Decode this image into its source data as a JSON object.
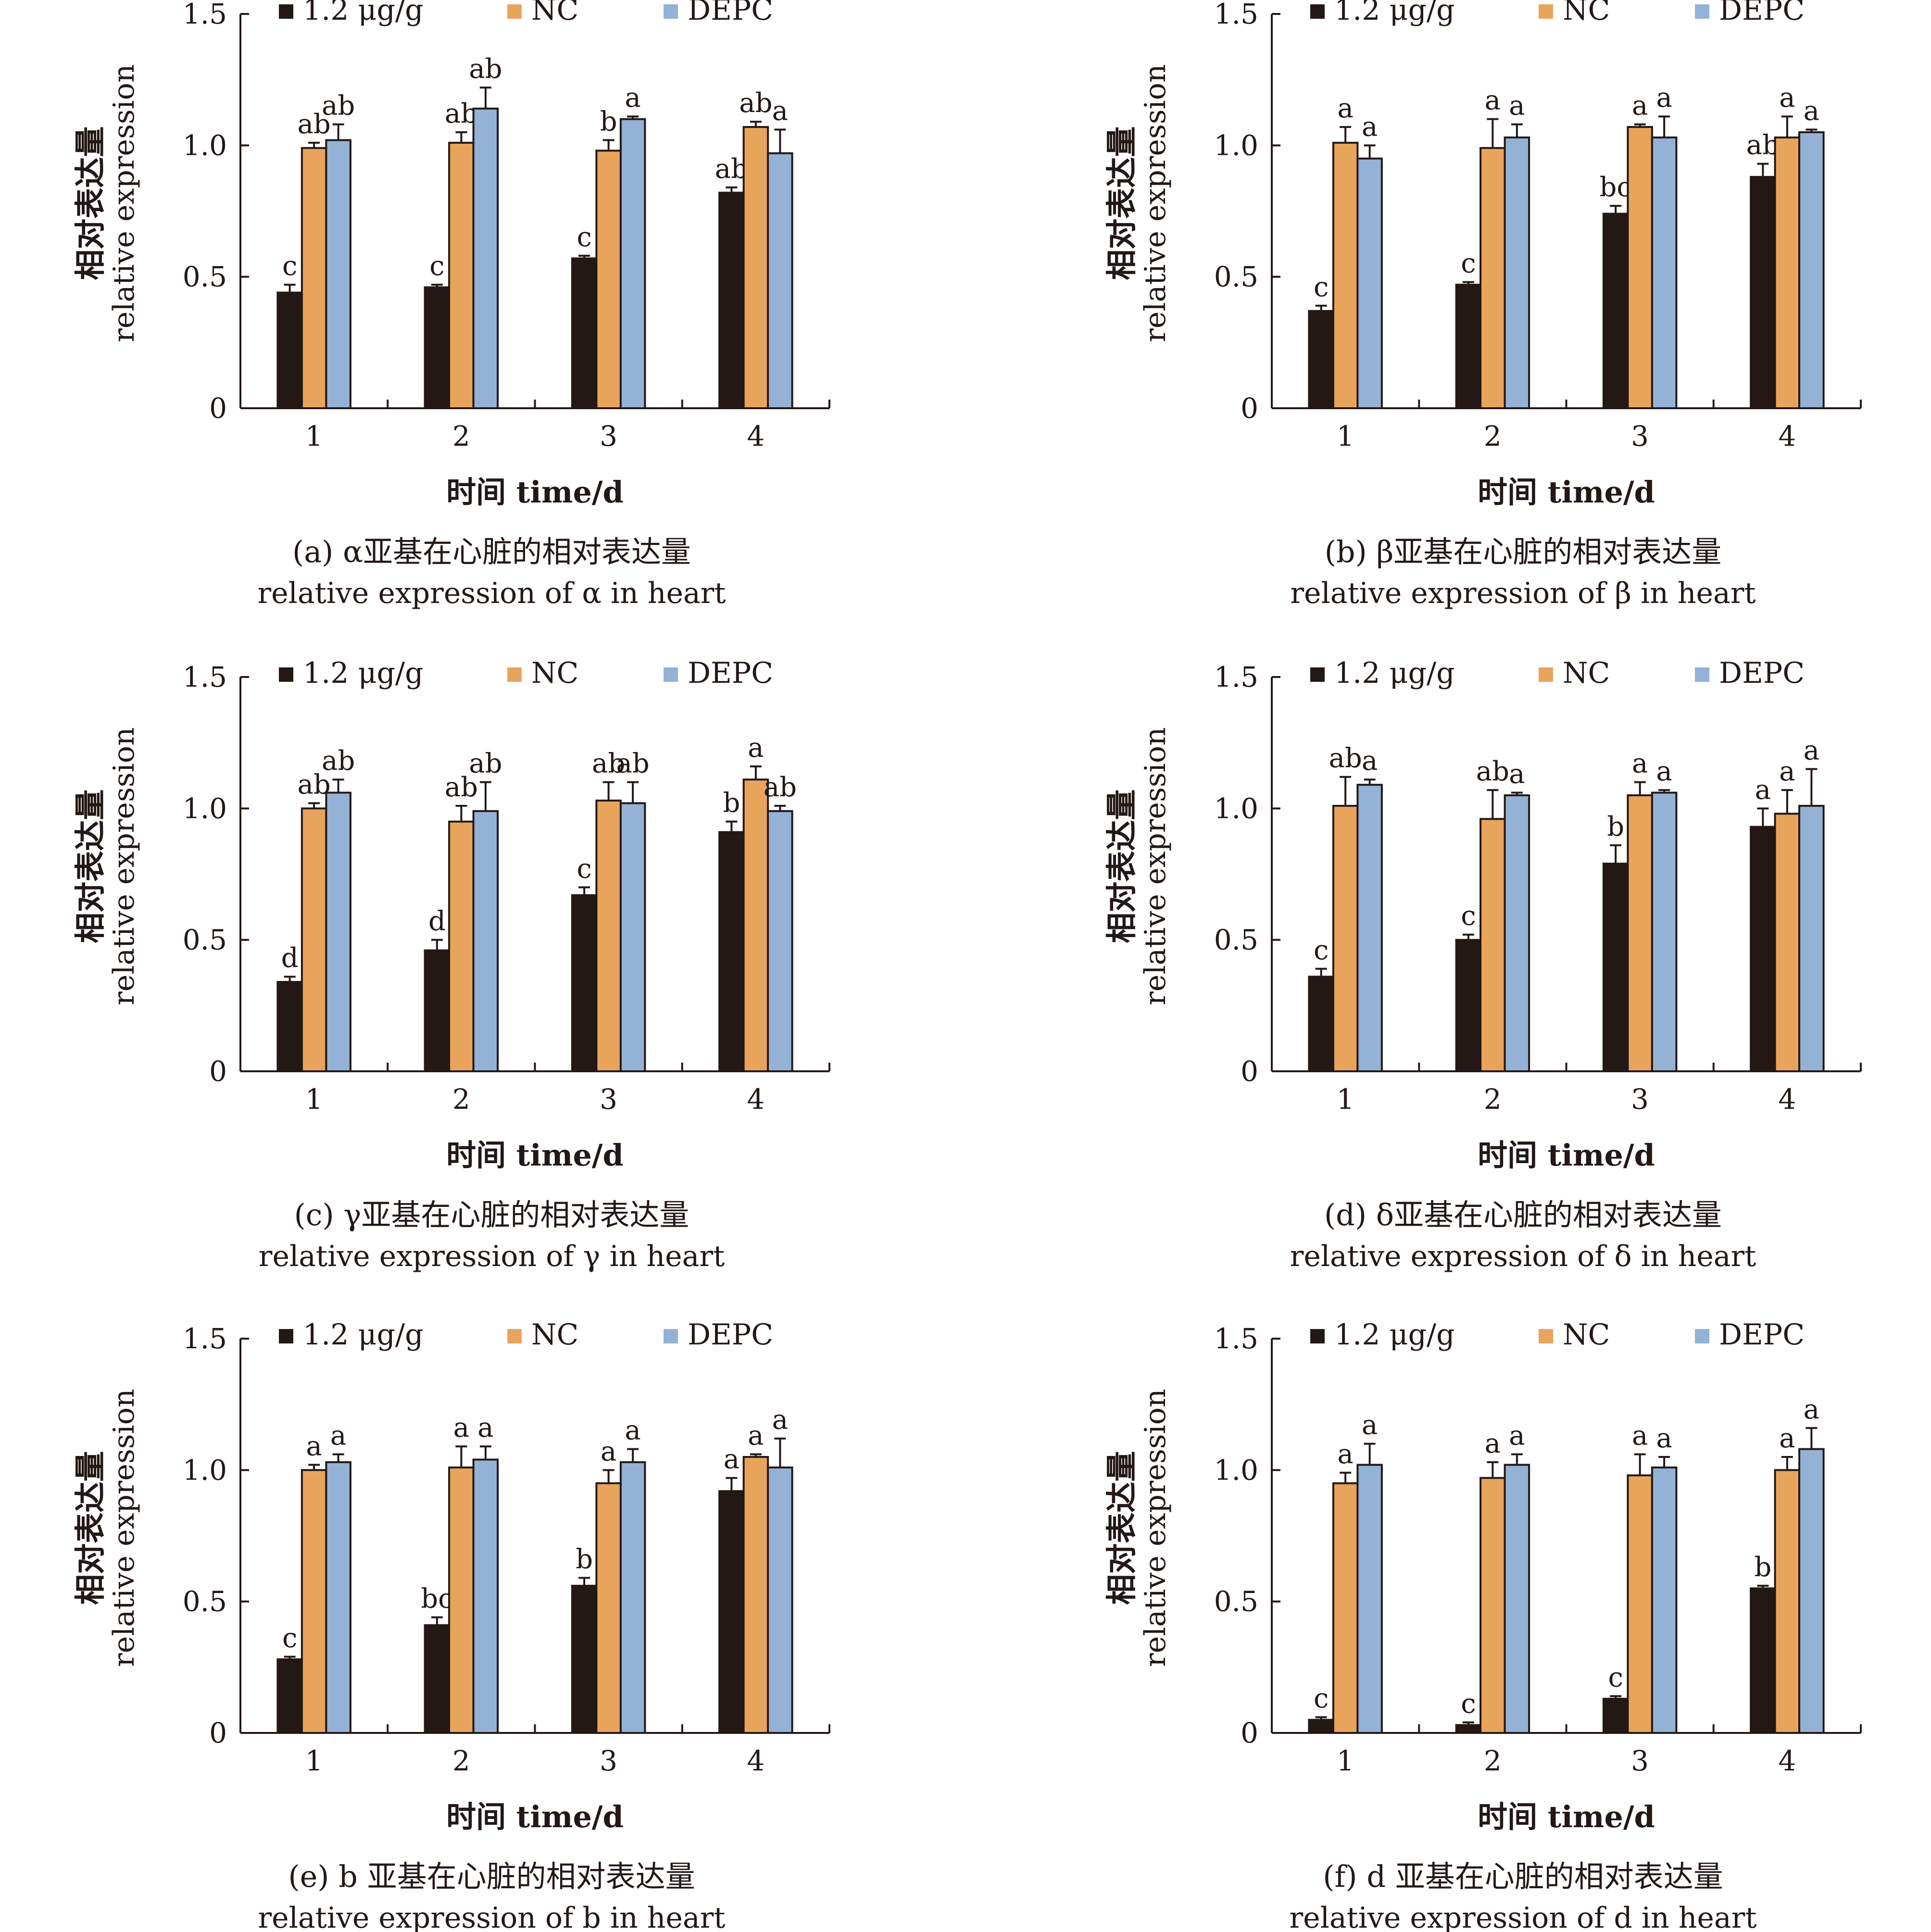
{
  "legend": {
    "items": [
      {
        "label": "1.2 μg/g",
        "color": "#231815"
      },
      {
        "label": "NC",
        "color": "#E9A45C"
      },
      {
        "label": "DEPC",
        "color": "#93B2D6"
      }
    ]
  },
  "axes": {
    "ylabel_cn": "相对表达量",
    "ylabel_en": "relative expression",
    "xlabel": "时间 time/d",
    "yticks": [
      "0",
      "0.5",
      "1.0",
      "1.5"
    ],
    "xticks": [
      "1",
      "2",
      "3",
      "4"
    ]
  },
  "colors": {
    "ink": "#231815",
    "treatment": "#231815",
    "nc": "#E9A45C",
    "depc": "#93B2D6"
  },
  "chart_data": [
    {
      "type": "bar",
      "caption_cn": "(a) α亚基在心脏的相对表达量",
      "caption_en": "relative expression of α in heart",
      "xlabel": "时间 time/d",
      "ylabel": "相对表达量 relative expression",
      "categories": [
        "1",
        "2",
        "3",
        "4"
      ],
      "ylim": [
        0,
        1.5
      ],
      "legend": "top",
      "series": [
        {
          "name": "1.2 μg/g",
          "values": [
            0.44,
            0.46,
            0.57,
            0.82
          ],
          "errors": [
            0.03,
            0.01,
            0.01,
            0.02
          ],
          "labels": [
            "c",
            "c",
            "c",
            "ab"
          ]
        },
        {
          "name": "NC",
          "values": [
            0.99,
            1.01,
            0.98,
            1.07
          ],
          "errors": [
            0.02,
            0.04,
            0.04,
            0.02
          ],
          "labels": [
            "ab",
            "ab",
            "b",
            "ab"
          ]
        },
        {
          "name": "DEPC",
          "values": [
            1.02,
            1.14,
            1.1,
            0.97
          ],
          "errors": [
            0.06,
            0.08,
            0.01,
            0.09
          ],
          "labels": [
            "ab",
            "ab",
            "a",
            "a"
          ]
        }
      ]
    },
    {
      "type": "bar",
      "caption_cn": "(b) β亚基在心脏的相对表达量",
      "caption_en": "relative expression of β in heart",
      "xlabel": "时间 time/d",
      "ylabel": "相对表达量 relative expression",
      "categories": [
        "1",
        "2",
        "3",
        "4"
      ],
      "ylim": [
        0,
        1.5
      ],
      "legend": "top",
      "series": [
        {
          "name": "1.2 μg/g",
          "values": [
            0.37,
            0.47,
            0.74,
            0.88
          ],
          "errors": [
            0.02,
            0.01,
            0.03,
            0.05
          ],
          "labels": [
            "c",
            "c",
            "bc",
            "ab"
          ]
        },
        {
          "name": "NC",
          "values": [
            1.01,
            0.99,
            1.07,
            1.03
          ],
          "errors": [
            0.06,
            0.11,
            0.01,
            0.08
          ],
          "labels": [
            "a",
            "a",
            "a",
            "a"
          ]
        },
        {
          "name": "DEPC",
          "values": [
            0.95,
            1.03,
            1.03,
            1.05
          ],
          "errors": [
            0.05,
            0.05,
            0.08,
            0.01
          ],
          "labels": [
            "a",
            "a",
            "a",
            "a"
          ]
        }
      ]
    },
    {
      "type": "bar",
      "caption_cn": "(c) γ亚基在心脏的相对表达量",
      "caption_en": "relative expression of γ in heart",
      "xlabel": "时间 time/d",
      "ylabel": "相对表达量 relative expression",
      "categories": [
        "1",
        "2",
        "3",
        "4"
      ],
      "ylim": [
        0,
        1.5
      ],
      "legend": "top",
      "series": [
        {
          "name": "1.2 μg/g",
          "values": [
            0.34,
            0.46,
            0.67,
            0.91
          ],
          "errors": [
            0.02,
            0.04,
            0.03,
            0.04
          ],
          "labels": [
            "d",
            "d",
            "c",
            "b"
          ]
        },
        {
          "name": "NC",
          "values": [
            1.0,
            0.95,
            1.03,
            1.11
          ],
          "errors": [
            0.02,
            0.06,
            0.07,
            0.05
          ],
          "labels": [
            "ab",
            "ab",
            "ab",
            "a"
          ]
        },
        {
          "name": "DEPC",
          "values": [
            1.06,
            0.99,
            1.02,
            0.99
          ],
          "errors": [
            0.05,
            0.11,
            0.08,
            0.02
          ],
          "labels": [
            "ab",
            "ab",
            "ab",
            "ab"
          ]
        }
      ]
    },
    {
      "type": "bar",
      "caption_cn": "(d) δ亚基在心脏的相对表达量",
      "caption_en": "relative expression of δ in heart",
      "xlabel": "时间 time/d",
      "ylabel": "相对表达量 relative expression",
      "categories": [
        "1",
        "2",
        "3",
        "4"
      ],
      "ylim": [
        0,
        1.5
      ],
      "legend": "top",
      "series": [
        {
          "name": "1.2 μg/g",
          "values": [
            0.36,
            0.5,
            0.79,
            0.93
          ],
          "errors": [
            0.03,
            0.02,
            0.07,
            0.07
          ],
          "labels": [
            "c",
            "c",
            "b",
            "a"
          ]
        },
        {
          "name": "NC",
          "values": [
            1.01,
            0.96,
            1.05,
            0.98
          ],
          "errors": [
            0.11,
            0.11,
            0.05,
            0.09
          ],
          "labels": [
            "ab",
            "ab",
            "a",
            "a"
          ]
        },
        {
          "name": "DEPC",
          "values": [
            1.09,
            1.05,
            1.06,
            1.01
          ],
          "errors": [
            0.02,
            0.01,
            0.01,
            0.14
          ],
          "labels": [
            "a",
            "a",
            "a",
            "a"
          ]
        }
      ]
    },
    {
      "type": "bar",
      "caption_cn": "(e) b 亚基在心脏的相对表达量",
      "caption_en": "relative expression of b in heart",
      "xlabel": "时间 time/d",
      "ylabel": "相对表达量 relative expression",
      "categories": [
        "1",
        "2",
        "3",
        "4"
      ],
      "ylim": [
        0,
        1.5
      ],
      "legend": "top",
      "series": [
        {
          "name": "1.2 μg/g",
          "values": [
            0.28,
            0.41,
            0.56,
            0.92
          ],
          "errors": [
            0.01,
            0.03,
            0.03,
            0.05
          ],
          "labels": [
            "c",
            "bc",
            "b",
            "a"
          ]
        },
        {
          "name": "NC",
          "values": [
            1.0,
            1.01,
            0.95,
            1.05
          ],
          "errors": [
            0.02,
            0.08,
            0.05,
            0.01
          ],
          "labels": [
            "a",
            "a",
            "a",
            "a"
          ]
        },
        {
          "name": "DEPC",
          "values": [
            1.03,
            1.04,
            1.03,
            1.01
          ],
          "errors": [
            0.03,
            0.05,
            0.05,
            0.11
          ],
          "labels": [
            "a",
            "a",
            "a",
            "a"
          ]
        }
      ]
    },
    {
      "type": "bar",
      "caption_cn": "(f) d 亚基在心脏的相对表达量",
      "caption_en": "relative expression of d in heart",
      "xlabel": "时间 time/d",
      "ylabel": "相对表达量 relative expression",
      "categories": [
        "1",
        "2",
        "3",
        "4"
      ],
      "ylim": [
        0,
        1.5
      ],
      "legend": "top",
      "series": [
        {
          "name": "1.2 μg/g",
          "values": [
            0.05,
            0.03,
            0.13,
            0.55
          ],
          "errors": [
            0.01,
            0.01,
            0.01,
            0.01
          ],
          "labels": [
            "c",
            "c",
            "c",
            "b"
          ]
        },
        {
          "name": "NC",
          "values": [
            0.95,
            0.97,
            0.98,
            1.0
          ],
          "errors": [
            0.04,
            0.06,
            0.08,
            0.05
          ],
          "labels": [
            "a",
            "a",
            "a",
            "a"
          ]
        },
        {
          "name": "DEPC",
          "values": [
            1.02,
            1.02,
            1.01,
            1.08
          ],
          "errors": [
            0.08,
            0.04,
            0.04,
            0.08
          ],
          "labels": [
            "a",
            "a",
            "a",
            "a"
          ]
        }
      ]
    }
  ]
}
